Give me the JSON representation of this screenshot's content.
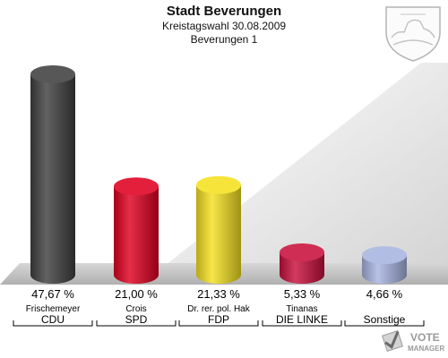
{
  "chart_data": {
    "type": "bar",
    "title": "Stadt Beverungen",
    "subtitle": [
      "Kreistagswahl 30.08.2009",
      "Beverungen 1"
    ],
    "categories": [
      "Frischemeyer",
      "Crois",
      "Dr. rer. pol. Hak",
      "Tinanas",
      ""
    ],
    "parties": [
      "CDU",
      "SPD",
      "FDP",
      "DIE LINKE",
      "Sonstige"
    ],
    "value_labels": [
      "47,67 %",
      "21,00 %",
      "21,33 %",
      "5,33 %",
      "4,66 %"
    ],
    "values": [
      47.67,
      21.0,
      21.33,
      5.33,
      4.66
    ],
    "colors": [
      "#404040",
      "#e00020",
      "#f5e020",
      "#c8103c",
      "#a8b4e0"
    ],
    "ylim": [
      0,
      50
    ],
    "grid": false,
    "legend": "none"
  },
  "branding": {
    "logo_line1": "VOTE",
    "logo_line2": "MANAGER"
  },
  "icons": {
    "crest": "coat-of-arms-icon",
    "logo": "votemanager-logo-icon"
  }
}
